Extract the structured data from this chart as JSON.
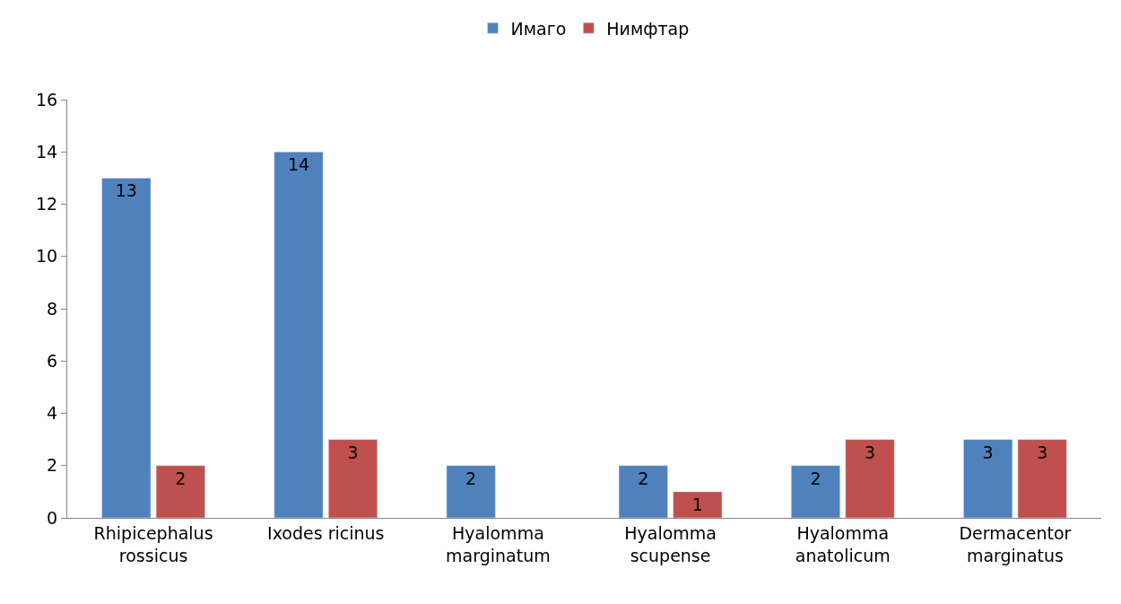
{
  "chart_data": {
    "type": "bar",
    "categories": [
      "Rhipicephalus rossicus",
      "Ixodes ricinus",
      "Hyalomma marginatum",
      "Hyalomma scupense",
      "Hyalomma anatolicum",
      "Dermacentor marginatus"
    ],
    "series": [
      {
        "name": "Имаго",
        "color": "#4f81bd",
        "values": [
          13,
          14,
          2,
          2,
          2,
          3
        ]
      },
      {
        "name": "Нимфтар",
        "color": "#c0504d",
        "values": [
          2,
          3,
          null,
          1,
          3,
          3
        ]
      }
    ],
    "ylim": [
      0,
      16
    ],
    "yticks": [
      0,
      2,
      4,
      6,
      8,
      10,
      12,
      14,
      16
    ],
    "data_labels": true,
    "legend": "top"
  }
}
